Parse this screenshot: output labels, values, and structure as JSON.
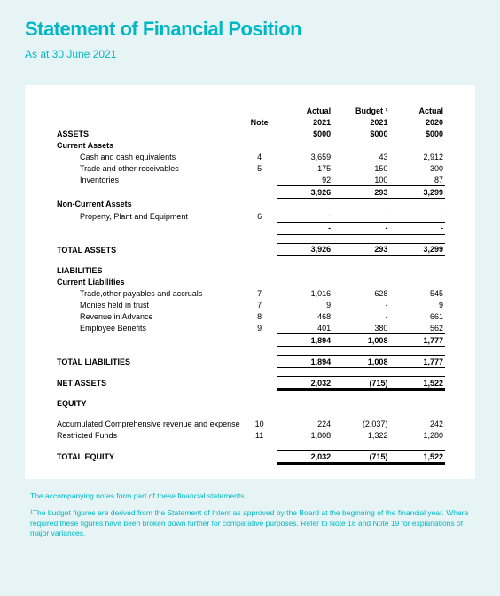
{
  "title": "Statement of Financial Position",
  "subtitle": "As at 30 June 2021",
  "columns": {
    "note": "Note",
    "c1_top": "Actual",
    "c1_mid": "2021",
    "c1_unit": "$000",
    "c2_top": "Budget ¹",
    "c2_mid": "2021",
    "c2_unit": "$000",
    "c3_top": "Actual",
    "c3_mid": "2020",
    "c3_unit": "$000"
  },
  "sections": {
    "assets": "ASSETS",
    "ca": "Current Assets",
    "cash": "Cash and cash equivalents",
    "trade_recv": "Trade and other receivables",
    "inv": "Inventories",
    "nca": "Non-Current Assets",
    "ppe": "Property, Plant and Equipment",
    "total_assets": "TOTAL ASSETS",
    "liab": "LIABILITIES",
    "cl": "Current Liabilities",
    "trade_pay": "Trade,other payables and accruals",
    "monies": "Monies held in trust",
    "rev_adv": "Revenue in Advance",
    "emp_ben": "Employee Benefits",
    "total_liab": "TOTAL LIABILITIES",
    "net_assets": "NET ASSETS",
    "equity": "EQUITY",
    "acc_rev": "Accumulated Comprehensive revenue and expense",
    "rest_funds": "Restricted Funds",
    "total_equity": "TOTAL EQUITY"
  },
  "values": {
    "cash": {
      "note": "4",
      "c1": "3,659",
      "c2": "43",
      "c3": "2,912"
    },
    "trade_recv": {
      "note": "5",
      "c1": "175",
      "c2": "150",
      "c3": "300"
    },
    "inv": {
      "note": "",
      "c1": "92",
      "c2": "100",
      "c3": "87"
    },
    "ca_sub": {
      "c1": "3,926",
      "c2": "293",
      "c3": "3,299"
    },
    "ppe": {
      "note": "6",
      "c1": "-",
      "c2": "-",
      "c3": "-"
    },
    "nca_sub": {
      "c1": "-",
      "c2": "-",
      "c3": "-"
    },
    "total_assets": {
      "c1": "3,926",
      "c2": "293",
      "c3": "3,299"
    },
    "trade_pay": {
      "note": "7",
      "c1": "1,016",
      "c2": "628",
      "c3": "545"
    },
    "monies": {
      "note": "7",
      "c1": "9",
      "c2": "-",
      "c3": "9"
    },
    "rev_adv": {
      "note": "8",
      "c1": "468",
      "c2": "-",
      "c3": "661"
    },
    "emp_ben": {
      "note": "9",
      "c1": "401",
      "c2": "380",
      "c3": "562"
    },
    "cl_sub": {
      "c1": "1,894",
      "c2": "1,008",
      "c3": "1,777"
    },
    "total_liab": {
      "c1": "1,894",
      "c2": "1,008",
      "c3": "1,777"
    },
    "net_assets": {
      "c1": "2,032",
      "c2": "(715)",
      "c3": "1,522"
    },
    "acc_rev": {
      "note": "10",
      "c1": "224",
      "c2": "(2,037)",
      "c3": "242"
    },
    "rest_funds": {
      "note": "11",
      "c1": "1,808",
      "c2": "1,322",
      "c3": "1,280"
    },
    "total_equity": {
      "c1": "2,032",
      "c2": "(715)",
      "c3": "1,522"
    }
  },
  "footnotes": {
    "n1": "The accompanying notes form part of these financial statements",
    "n2": "¹The budget figures are derived from the Statement of Intent as approved by the Board at the beginning of the financial year. Where required these figures have been broken down further for comparative purposes. Refer to Note 18 and Note 19 for explanations of major variances."
  },
  "style": {
    "accent": "#00b8c4",
    "background": "#e6f4f5"
  }
}
